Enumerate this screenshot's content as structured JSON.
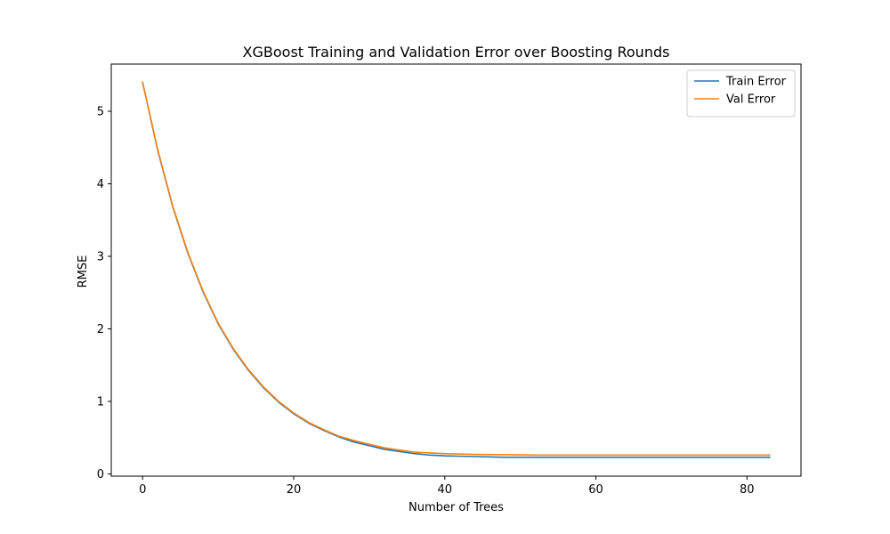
{
  "chart_data": {
    "type": "line",
    "title": "XGBoost Training and Validation Error over Boosting Rounds",
    "xlabel": "Number of Trees",
    "ylabel": "RMSE",
    "xlim": [
      -4.15,
      87.15
    ],
    "ylim": [
      -0.03,
      5.65
    ],
    "xticks": [
      0,
      20,
      40,
      60,
      80
    ],
    "yticks": [
      0,
      1,
      2,
      3,
      4,
      5
    ],
    "grid": false,
    "legend_position": "top-right",
    "series": [
      {
        "name": "Train Error",
        "color": "#1f77b4",
        "x": [
          0,
          2,
          4,
          6,
          8,
          10,
          12,
          14,
          16,
          18,
          20,
          22,
          24,
          26,
          28,
          30,
          32,
          34,
          36,
          38,
          40,
          44,
          48,
          52,
          56,
          60,
          64,
          68,
          72,
          76,
          80,
          83
        ],
        "values": [
          5.4,
          4.46,
          3.68,
          3.04,
          2.51,
          2.07,
          1.72,
          1.43,
          1.19,
          0.99,
          0.83,
          0.7,
          0.6,
          0.51,
          0.44,
          0.39,
          0.34,
          0.31,
          0.28,
          0.26,
          0.25,
          0.24,
          0.23,
          0.23,
          0.23,
          0.23,
          0.23,
          0.23,
          0.23,
          0.23,
          0.23,
          0.23
        ]
      },
      {
        "name": "Val Error",
        "color": "#ff7f0e",
        "x": [
          0,
          2,
          4,
          6,
          8,
          10,
          12,
          14,
          16,
          18,
          20,
          22,
          24,
          26,
          28,
          30,
          32,
          34,
          36,
          38,
          40,
          44,
          48,
          52,
          56,
          60,
          64,
          68,
          72,
          76,
          80,
          83
        ],
        "values": [
          5.4,
          4.47,
          3.69,
          3.05,
          2.52,
          2.08,
          1.73,
          1.44,
          1.2,
          1.0,
          0.84,
          0.71,
          0.61,
          0.52,
          0.46,
          0.41,
          0.36,
          0.33,
          0.3,
          0.29,
          0.28,
          0.27,
          0.265,
          0.26,
          0.26,
          0.26,
          0.26,
          0.26,
          0.26,
          0.26,
          0.26,
          0.26
        ]
      }
    ]
  }
}
